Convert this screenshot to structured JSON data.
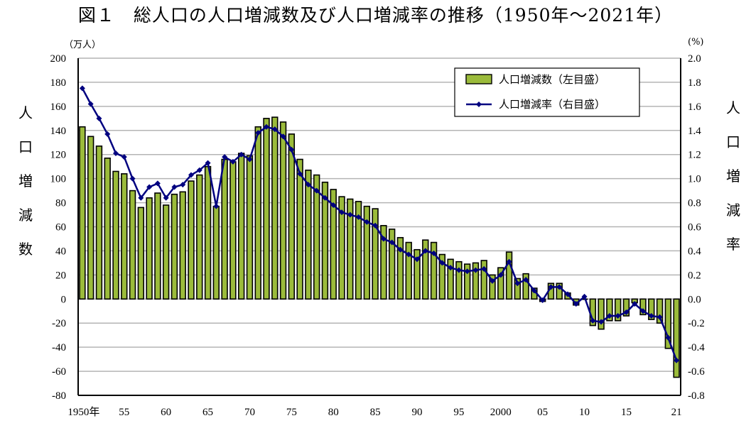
{
  "title": "図１　総人口の人口増減数及び人口増減率の推移（1950年～2021年）",
  "left_unit": "（万人）",
  "right_unit": "(%)",
  "left_axis_label": [
    "人",
    "口",
    "増",
    "減",
    "数"
  ],
  "right_axis_label": [
    "人",
    "口",
    "増",
    "減",
    "率"
  ],
  "colors": {
    "bar": "#9bbb3b",
    "bar_border": "#000000",
    "line": "#000080",
    "grid": "#b4b4b4"
  },
  "chart_data": {
    "type": "bar+line",
    "title": "図１　総人口の人口増減数及び人口増減率の推移（1950年～2021年）",
    "x": [
      1950,
      1951,
      1952,
      1953,
      1954,
      1955,
      1956,
      1957,
      1958,
      1959,
      1960,
      1961,
      1962,
      1963,
      1964,
      1965,
      1966,
      1967,
      1968,
      1969,
      1970,
      1971,
      1972,
      1973,
      1974,
      1975,
      1976,
      1977,
      1978,
      1979,
      1980,
      1981,
      1982,
      1983,
      1984,
      1985,
      1986,
      1987,
      1988,
      1989,
      1990,
      1991,
      1992,
      1993,
      1994,
      1995,
      1996,
      1997,
      1998,
      1999,
      2000,
      2001,
      2002,
      2003,
      2004,
      2005,
      2006,
      2007,
      2008,
      2009,
      2010,
      2011,
      2012,
      2013,
      2014,
      2015,
      2016,
      2017,
      2018,
      2019,
      2020,
      2021
    ],
    "x_tick_labels": [
      {
        "year": 1950,
        "label": "1950年"
      },
      {
        "year": 1955,
        "label": "55"
      },
      {
        "year": 1960,
        "label": "60"
      },
      {
        "year": 1965,
        "label": "65"
      },
      {
        "year": 1970,
        "label": "70"
      },
      {
        "year": 1975,
        "label": "75"
      },
      {
        "year": 1980,
        "label": "80"
      },
      {
        "year": 1985,
        "label": "85"
      },
      {
        "year": 1990,
        "label": "90"
      },
      {
        "year": 1995,
        "label": "95"
      },
      {
        "year": 2000,
        "label": "2000"
      },
      {
        "year": 2005,
        "label": "05"
      },
      {
        "year": 2010,
        "label": "10"
      },
      {
        "year": 2015,
        "label": "15"
      },
      {
        "year": 2021,
        "label": "21"
      }
    ],
    "series": [
      {
        "name": "人口増減数（左目盛）",
        "type": "bar",
        "axis": "left",
        "values": [
          143,
          135,
          127,
          117,
          106,
          104,
          90,
          76,
          84,
          88,
          78,
          87,
          89,
          98,
          103,
          110,
          77,
          116,
          114,
          121,
          119,
          143,
          150,
          151,
          147,
          137,
          116,
          107,
          103,
          97,
          91,
          85,
          83,
          81,
          77,
          75,
          61,
          58,
          51,
          47,
          41,
          49,
          47,
          37,
          33,
          31,
          29,
          30,
          32,
          20,
          26,
          39,
          17,
          21,
          9,
          -2,
          13,
          13,
          5,
          -5,
          0,
          -22,
          -25,
          -18,
          -18,
          -14,
          -3,
          -13,
          -17,
          -20,
          -41,
          -65
        ]
      },
      {
        "name": "人口増減率（右目盛）",
        "type": "line",
        "axis": "right",
        "values": [
          1.75,
          1.62,
          1.5,
          1.37,
          1.21,
          1.18,
          1.0,
          0.84,
          0.93,
          0.96,
          0.84,
          0.93,
          0.95,
          1.03,
          1.07,
          1.13,
          0.77,
          1.18,
          1.14,
          1.2,
          1.16,
          1.38,
          1.43,
          1.41,
          1.35,
          1.24,
          1.04,
          0.95,
          0.9,
          0.84,
          0.78,
          0.72,
          0.7,
          0.68,
          0.64,
          0.61,
          0.5,
          0.47,
          0.41,
          0.37,
          0.33,
          0.4,
          0.38,
          0.3,
          0.26,
          0.24,
          0.23,
          0.24,
          0.25,
          0.15,
          0.2,
          0.31,
          0.13,
          0.16,
          0.07,
          -0.01,
          0.1,
          0.1,
          0.04,
          -0.04,
          0.02,
          -0.18,
          -0.19,
          -0.14,
          -0.14,
          -0.11,
          -0.04,
          -0.1,
          -0.14,
          -0.15,
          -0.32,
          -0.51
        ]
      }
    ],
    "ylim_left": [
      -80,
      200
    ],
    "ylim_right": [
      -0.8,
      2.0
    ],
    "left_ticks": [
      "200",
      "180",
      "160",
      "140",
      "120",
      "100",
      "80",
      "60",
      "40",
      "20",
      "0",
      "-20",
      "-40",
      "-60",
      "-80"
    ],
    "right_ticks": [
      "2.0",
      "1.8",
      "1.6",
      "1.4",
      "1.2",
      "1.0",
      "0.8",
      "0.6",
      "0.4",
      "0.2",
      "0.0",
      "-0.2",
      "-0.4",
      "-0.6",
      "-0.8"
    ],
    "grid": true,
    "legend_position": "top-right"
  }
}
